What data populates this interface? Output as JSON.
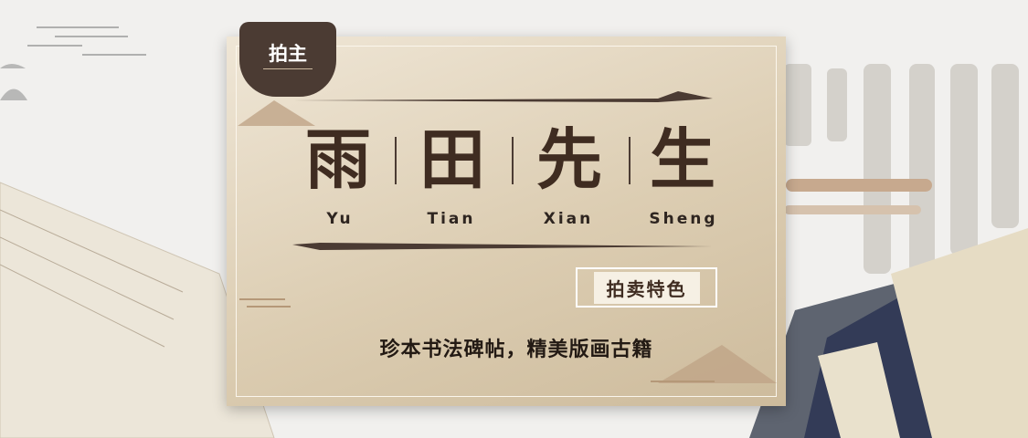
{
  "badge": "拍主",
  "title": {
    "characters": [
      "雨",
      "田",
      "先",
      "生"
    ],
    "pinyin": [
      "Yu",
      "Tian",
      "Xian",
      "Sheng"
    ]
  },
  "tag": "拍卖特色",
  "slogan": "珍本书法碑帖，精美版画古籍"
}
